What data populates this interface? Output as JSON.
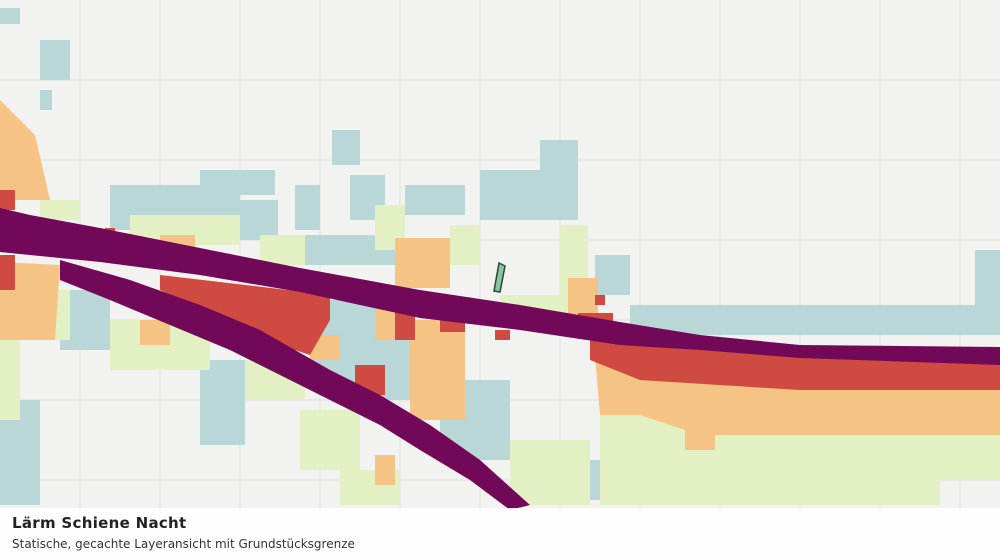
{
  "header": {
    "title": "Lärm Schiene Nacht",
    "subtitle": "Statische, gecachte Layeransicht mit Grundstücksgrenze"
  }
}
